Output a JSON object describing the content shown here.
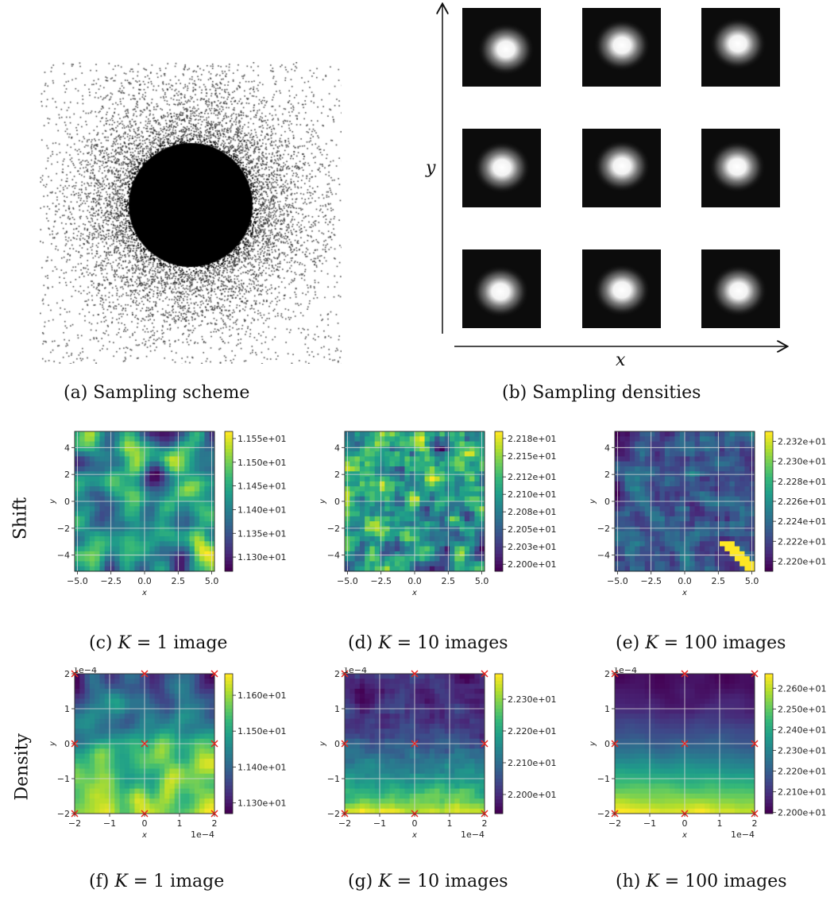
{
  "captions": {
    "a": "(a) Sampling scheme",
    "b": "(b) Sampling densities",
    "c": [
      "(c) ",
      "K",
      " = 1 image"
    ],
    "d": [
      "(d) ",
      "K",
      " = 10 images"
    ],
    "e": [
      "(e) ",
      "K",
      " = 100 images"
    ],
    "f": [
      "(f) ",
      "K",
      " = 1 image"
    ],
    "g": [
      "(g) ",
      "K",
      " = 10 images"
    ],
    "h": [
      "(h) ",
      "K",
      " = 100 images"
    ]
  },
  "row_labels": {
    "shift": "Shift",
    "density": "Density"
  },
  "densities_axes": {
    "x": "x",
    "y": "y"
  },
  "colors": {
    "viridis": [
      "#440154",
      "#3b528b",
      "#21918c",
      "#5ec962",
      "#fde725"
    ],
    "marker": "#e8251e"
  },
  "chart_data": [
    {
      "id": "c",
      "type": "heatmap",
      "xlabel": "x",
      "ylabel": "y",
      "xlim": [
        -5.2,
        5.2
      ],
      "ylim": [
        -5.2,
        5.2
      ],
      "xticks": [
        "−5.0",
        "−2.5",
        "0.0",
        "2.5",
        "5.0"
      ],
      "xtick_vals": [
        -5,
        -2.5,
        0,
        2.5,
        5
      ],
      "yticks": [
        "4",
        "2",
        "0",
        "−2",
        "−4"
      ],
      "ytick_vals": [
        4,
        2,
        0,
        -2,
        -4
      ],
      "colorbar_ticks": [
        "1.155e+01",
        "1.150e+01",
        "1.145e+01",
        "1.140e+01",
        "1.135e+01",
        "1.130e+01"
      ],
      "clim": [
        11.27,
        11.565
      ],
      "colorbar_vals": [
        11.55,
        11.5,
        11.45,
        11.4,
        11.35,
        11.3
      ],
      "pattern": "smooth-blobs",
      "markers": []
    },
    {
      "id": "d",
      "type": "heatmap",
      "xlabel": "x",
      "ylabel": "y",
      "xlim": [
        -5.2,
        5.2
      ],
      "ylim": [
        -5.2,
        5.2
      ],
      "xticks": [
        "−5.0",
        "−2.5",
        "0.0",
        "2.5",
        "5.0"
      ],
      "xtick_vals": [
        -5,
        -2.5,
        0,
        2.5,
        5
      ],
      "yticks": [
        "4",
        "2",
        "0",
        "−2",
        "−4"
      ],
      "ytick_vals": [
        4,
        2,
        0,
        -2,
        -4
      ],
      "colorbar_ticks": [
        "2.218e+01",
        "2.215e+01",
        "2.212e+01",
        "2.210e+01",
        "2.208e+01",
        "2.205e+01",
        "2.203e+01",
        "2.200e+01"
      ],
      "clim": [
        21.99,
        22.19
      ],
      "colorbar_vals": [
        22.18,
        22.155,
        22.125,
        22.1,
        22.075,
        22.05,
        22.025,
        22.0
      ],
      "pattern": "pixel-noise",
      "markers": []
    },
    {
      "id": "e",
      "type": "heatmap",
      "xlabel": "x",
      "ylabel": "y",
      "xlim": [
        -5.2,
        5.2
      ],
      "ylim": [
        -5.2,
        5.2
      ],
      "xticks": [
        "−5.0",
        "−2.5",
        "0.0",
        "2.5",
        "5.0"
      ],
      "xtick_vals": [
        -5,
        -2.5,
        0,
        2.5,
        5
      ],
      "yticks": [
        "4",
        "2",
        "0",
        "−2",
        "−4"
      ],
      "ytick_vals": [
        4,
        2,
        0,
        -2,
        -4
      ],
      "colorbar_ticks": [
        "2.232e+01",
        "2.230e+01",
        "2.228e+01",
        "2.226e+01",
        "2.224e+01",
        "2.222e+01",
        "2.220e+01"
      ],
      "clim": [
        22.19,
        22.33
      ],
      "colorbar_vals": [
        22.32,
        22.3,
        22.28,
        22.26,
        22.24,
        22.22,
        22.2
      ],
      "pattern": "pixel-noise-diagonal",
      "markers": []
    },
    {
      "id": "f",
      "type": "heatmap",
      "xlabel": "x",
      "ylabel": "y",
      "xlim": [
        -2,
        2
      ],
      "ylim": [
        -2,
        2
      ],
      "scale_label": "1e−4",
      "xticks": [
        "−2",
        "−1",
        "0",
        "1",
        "2"
      ],
      "xtick_vals": [
        -2,
        -1,
        0,
        1,
        2
      ],
      "yticks": [
        "2",
        "1",
        "0",
        "−1",
        "−2"
      ],
      "ytick_vals": [
        2,
        1,
        0,
        -1,
        -2
      ],
      "colorbar_ticks": [
        "1.160e+01",
        "1.150e+01",
        "1.140e+01",
        "1.130e+01"
      ],
      "clim": [
        11.27,
        11.66
      ],
      "colorbar_vals": [
        11.6,
        11.5,
        11.4,
        11.3
      ],
      "pattern": "smooth-blobs-warm-bottom",
      "markers": [
        [
          -2,
          2
        ],
        [
          0,
          2
        ],
        [
          2,
          2
        ],
        [
          -2,
          0
        ],
        [
          0,
          0
        ],
        [
          2,
          0
        ],
        [
          -2,
          -2
        ],
        [
          0,
          -2
        ],
        [
          2,
          -2
        ]
      ]
    },
    {
      "id": "g",
      "type": "heatmap",
      "xlabel": "x",
      "ylabel": "y",
      "xlim": [
        -2,
        2
      ],
      "ylim": [
        -2,
        2
      ],
      "scale_label": "1e−4",
      "xticks": [
        "−2",
        "−1",
        "0",
        "1",
        "2"
      ],
      "xtick_vals": [
        -2,
        -1,
        0,
        1,
        2
      ],
      "yticks": [
        "2",
        "1",
        "0",
        "−1",
        "−2"
      ],
      "ytick_vals": [
        2,
        1,
        0,
        -1,
        -2
      ],
      "colorbar_ticks": [
        "2.230e+01",
        "2.220e+01",
        "2.210e+01",
        "2.200e+01"
      ],
      "clim": [
        21.94,
        22.38
      ],
      "colorbar_vals": [
        22.3,
        22.2,
        22.1,
        22.0
      ],
      "pattern": "gradient-bottom-noisy",
      "markers": [
        [
          -2,
          2
        ],
        [
          0,
          2
        ],
        [
          2,
          2
        ],
        [
          -2,
          0
        ],
        [
          0,
          0
        ],
        [
          2,
          0
        ],
        [
          -2,
          -2
        ],
        [
          0,
          -2
        ],
        [
          2,
          -2
        ]
      ]
    },
    {
      "id": "h",
      "type": "heatmap",
      "xlabel": "x",
      "ylabel": "y",
      "xlim": [
        -2,
        2
      ],
      "ylim": [
        -2,
        2
      ],
      "scale_label": "1e−4",
      "xticks": [
        "−2",
        "−1",
        "0",
        "1",
        "2"
      ],
      "xtick_vals": [
        -2,
        -1,
        0,
        1,
        2
      ],
      "yticks": [
        "2",
        "1",
        "0",
        "−1",
        "−2"
      ],
      "ytick_vals": [
        2,
        1,
        0,
        -1,
        -2
      ],
      "colorbar_ticks": [
        "2.260e+01",
        "2.250e+01",
        "2.240e+01",
        "2.230e+01",
        "2.220e+01",
        "2.210e+01",
        "2.200e+01"
      ],
      "clim": [
        21.995,
        22.67
      ],
      "colorbar_vals": [
        22.6,
        22.5,
        22.4,
        22.3,
        22.2,
        22.1,
        22.0
      ],
      "pattern": "gradient-bottom-smooth",
      "markers": [
        [
          -2,
          2
        ],
        [
          0,
          2
        ],
        [
          2,
          2
        ],
        [
          -2,
          0
        ],
        [
          0,
          0
        ],
        [
          2,
          0
        ],
        [
          -2,
          -2
        ],
        [
          0,
          -2
        ],
        [
          2,
          -2
        ]
      ]
    }
  ]
}
